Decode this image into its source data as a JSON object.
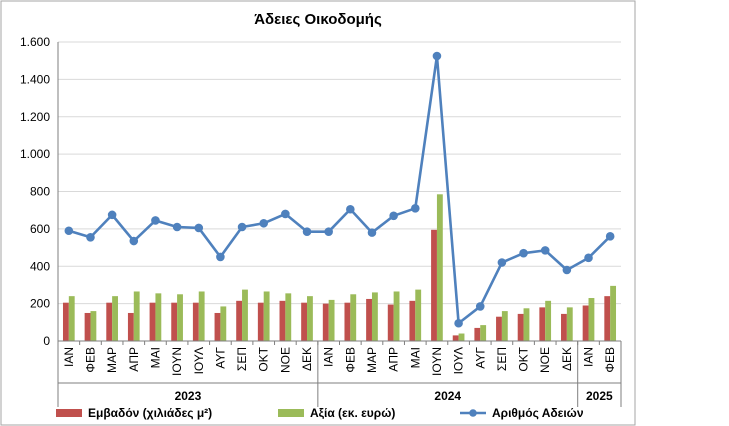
{
  "chart_data": {
    "type": "bar",
    "title": "Άδειες Οικοδομής",
    "ylim": [
      0,
      1600
    ],
    "y_ticks": [
      0,
      200,
      400,
      600,
      800,
      1000,
      1200,
      1400,
      1600
    ],
    "y_tick_labels": [
      "0",
      "200",
      "400",
      "600",
      "800",
      "1.000",
      "1.200",
      "1.400",
      "1.600"
    ],
    "grid": true,
    "legend_position": "bottom",
    "categories": [
      "ΙΑΝ",
      "ΦΕΒ",
      "ΜΑΡ",
      "ΑΠΡ",
      "ΜΑΙ",
      "ΙΟΥΝ",
      "ΙΟΥΛ",
      "ΑΥΓ",
      "ΣΕΠ",
      "ΟΚΤ",
      "ΝΟΕ",
      "ΔΕΚ",
      "ΙΑΝ",
      "ΦΕΒ",
      "ΜΑΡ",
      "ΑΠΡ",
      "ΜΑΙ",
      "ΙΟΥΝ",
      "ΙΟΥΛ",
      "ΑΥΓ",
      "ΣΕΠ",
      "ΟΚΤ",
      "ΝΟΕ",
      "ΔΕΚ",
      "ΙΑΝ",
      "ΦΕΒ"
    ],
    "groups": [
      {
        "label": "2023",
        "start": 0,
        "end": 11
      },
      {
        "label": "2024",
        "start": 12,
        "end": 23
      },
      {
        "label": "2025",
        "start": 24,
        "end": 25
      }
    ],
    "series": [
      {
        "name": "Εμβαδόν (χιλιάδες μ²)",
        "kind": "bar",
        "color": "#c0504d",
        "values": [
          205,
          150,
          205,
          150,
          205,
          205,
          205,
          150,
          215,
          205,
          215,
          205,
          200,
          205,
          225,
          195,
          215,
          595,
          30,
          70,
          130,
          145,
          180,
          145,
          190,
          240
        ]
      },
      {
        "name": "Αξία (εκ. ευρώ)",
        "kind": "bar",
        "color": "#9bbb59",
        "values": [
          240,
          160,
          240,
          265,
          255,
          250,
          265,
          185,
          275,
          265,
          255,
          240,
          220,
          250,
          260,
          265,
          275,
          785,
          40,
          85,
          160,
          175,
          215,
          180,
          230,
          295
        ]
      },
      {
        "name": "Αριθμός Αδειών",
        "kind": "line",
        "color": "#4f81bd",
        "values": [
          590,
          555,
          675,
          535,
          645,
          610,
          605,
          450,
          610,
          630,
          680,
          585,
          585,
          705,
          580,
          670,
          710,
          1525,
          95,
          185,
          420,
          470,
          485,
          380,
          445,
          560
        ]
      }
    ]
  }
}
